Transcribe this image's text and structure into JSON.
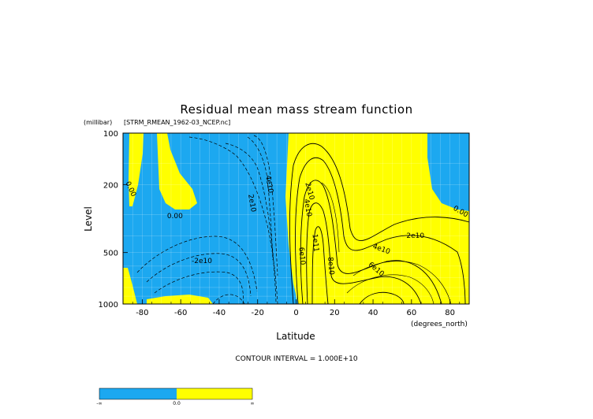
{
  "chart_data": {
    "type": "contour",
    "title": "Residual mean mass stream function",
    "dataset_label": "[STRM_RMEAN_1962-03_NCEP.nc]",
    "ylabel": "Level",
    "yunit": "(millibar)",
    "xlabel": "Latitude",
    "xunit": "(degrees_north)",
    "contour_interval_text": "CONTOUR INTERVAL = 1.000E+10",
    "xlim": [
      -90,
      90
    ],
    "ylim": [
      1000,
      100
    ],
    "y_scale": "log",
    "x_ticks": [
      {
        "value": -80,
        "label": "-80"
      },
      {
        "value": -60,
        "label": "-60"
      },
      {
        "value": -40,
        "label": "-40"
      },
      {
        "value": -20,
        "label": "-20"
      },
      {
        "value": 0,
        "label": "0"
      },
      {
        "value": 20,
        "label": "20"
      },
      {
        "value": 40,
        "label": "40"
      },
      {
        "value": 60,
        "label": "60"
      },
      {
        "value": 80,
        "label": "80"
      }
    ],
    "y_ticks": [
      {
        "value": 100,
        "label": "100"
      },
      {
        "value": 200,
        "label": "200"
      },
      {
        "value": 500,
        "label": "500"
      },
      {
        "value": 1000,
        "label": "1000"
      }
    ],
    "fill_colors": {
      "negative": "#1ca8f0",
      "positive": "#ffff00"
    },
    "contour_labels": [
      {
        "lat": -87,
        "p": 215,
        "text": "0.00",
        "angle": 65
      },
      {
        "lat": -63,
        "p": 315,
        "text": "0.00",
        "angle": 0
      },
      {
        "lat": 85,
        "p": 295,
        "text": "0.00",
        "angle": 30
      },
      {
        "lat": -24,
        "p": 258,
        "text": "2e10",
        "angle": 80
      },
      {
        "lat": -15,
        "p": 200,
        "text": "4e10",
        "angle": 80
      },
      {
        "lat": -49,
        "p": 575,
        "text": "-2e10",
        "angle": 0
      },
      {
        "lat": 2,
        "p": 525,
        "text": "6e10",
        "angle": 85
      },
      {
        "lat": 9,
        "p": 440,
        "text": "1e11",
        "angle": 85
      },
      {
        "lat": 17,
        "p": 600,
        "text": "8e10",
        "angle": 85
      },
      {
        "lat": 5,
        "p": 275,
        "text": "4e10",
        "angle": 80
      },
      {
        "lat": 6,
        "p": 220,
        "text": "2e10",
        "angle": 75
      },
      {
        "lat": 44,
        "p": 490,
        "text": "4e10",
        "angle": 20
      },
      {
        "lat": 62,
        "p": 410,
        "text": "2e10",
        "angle": 0
      },
      {
        "lat": 41,
        "p": 640,
        "text": "6e10",
        "angle": 40
      }
    ]
  },
  "colorbar": {
    "segments": [
      {
        "color": "#1ca8f0",
        "from_label": "-∞",
        "to_label": "0.0"
      },
      {
        "color": "#ffff00",
        "from_label": "0.0",
        "to_label": "∞"
      }
    ],
    "labels": [
      "-∞",
      "0.0",
      "∞"
    ]
  }
}
